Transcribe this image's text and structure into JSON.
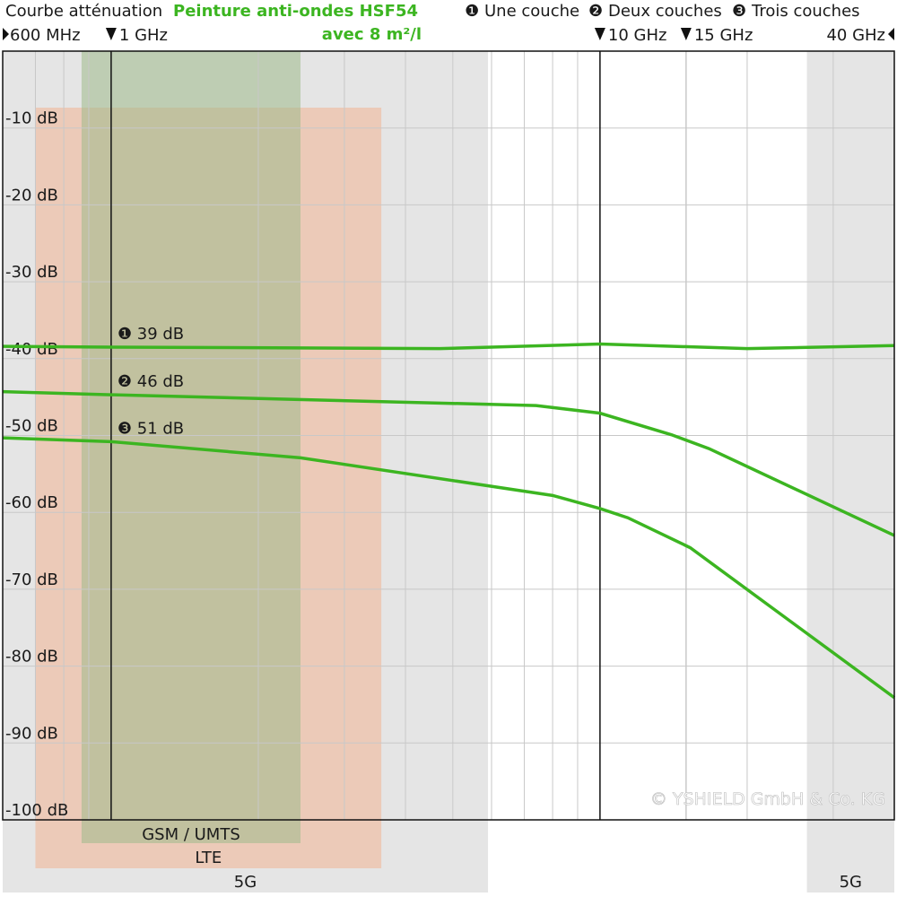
{
  "chart_data": {
    "type": "line",
    "title": "Courbe atténuation",
    "subtitle": "Peinture anti-ondes HSF54",
    "subtitle2": "avec 8 m²/l",
    "log_x": true,
    "xlim": [
      0.6,
      40
    ],
    "xticks": [
      {
        "value": 0.6,
        "label": "600 MHz"
      },
      {
        "value": 1,
        "label": "1 GHz"
      },
      {
        "value": 10,
        "label": "10 GHz"
      },
      {
        "value": 15,
        "label": "15 GHz"
      },
      {
        "value": 40,
        "label": "40 GHz"
      }
    ],
    "ylim": [
      -100,
      0
    ],
    "yticks": [
      {
        "value": -10,
        "label": "-10 dB"
      },
      {
        "value": -20,
        "label": "-20 dB"
      },
      {
        "value": -30,
        "label": "-30 dB"
      },
      {
        "value": -40,
        "label": "-40 dB"
      },
      {
        "value": -50,
        "label": "-50 dB"
      },
      {
        "value": -60,
        "label": "-60 dB"
      },
      {
        "value": -70,
        "label": "-70 dB"
      },
      {
        "value": -80,
        "label": "-80 dB"
      },
      {
        "value": -90,
        "label": "-90 dB"
      },
      {
        "value": -100,
        "label": "-100 dB"
      }
    ],
    "grid": true,
    "series": [
      {
        "name": "Une couche",
        "symbol": "❶",
        "label": "❶ 39 dB",
        "color": "#3cb521",
        "x": [
          0.6,
          1,
          4.7,
          10,
          20,
          40
        ],
        "values": [
          -38.4,
          -38.5,
          -38.7,
          -38.1,
          -38.7,
          -38.3
        ]
      },
      {
        "name": "Deux couches",
        "symbol": "❷",
        "label": "❷ 46 dB",
        "color": "#3cb521",
        "x": [
          0.6,
          1,
          7.4,
          10,
          14,
          16.7,
          40
        ],
        "values": [
          -44.3,
          -44.7,
          -46.1,
          -47.1,
          -49.9,
          -51.7,
          -63.0
        ]
      },
      {
        "name": "Trois couches",
        "symbol": "❸",
        "label": "❸ 51 dB",
        "color": "#3cb521",
        "x": [
          0.6,
          1,
          2.44,
          8,
          10,
          11.4,
          15.3,
          40
        ],
        "values": [
          -50.3,
          -50.8,
          -52.9,
          -57.8,
          -59.5,
          -60.7,
          -64.6,
          -84.1
        ]
      }
    ],
    "bands": [
      {
        "label": "5G",
        "range": [
          0.6,
          5.9
        ],
        "color": "#cfcfcf"
      },
      {
        "label": "LTE",
        "range": [
          0.7,
          3.57
        ],
        "color": "#f0b89a"
      },
      {
        "label": "GSM / UMTS",
        "range": [
          0.87,
          2.44
        ],
        "color": "#9fb98a"
      },
      {
        "label": "5G",
        "range": [
          26.5,
          40
        ],
        "color": "#cfcfcf"
      }
    ],
    "copyright": "© YSHIELD GmbH & Co. KG"
  }
}
